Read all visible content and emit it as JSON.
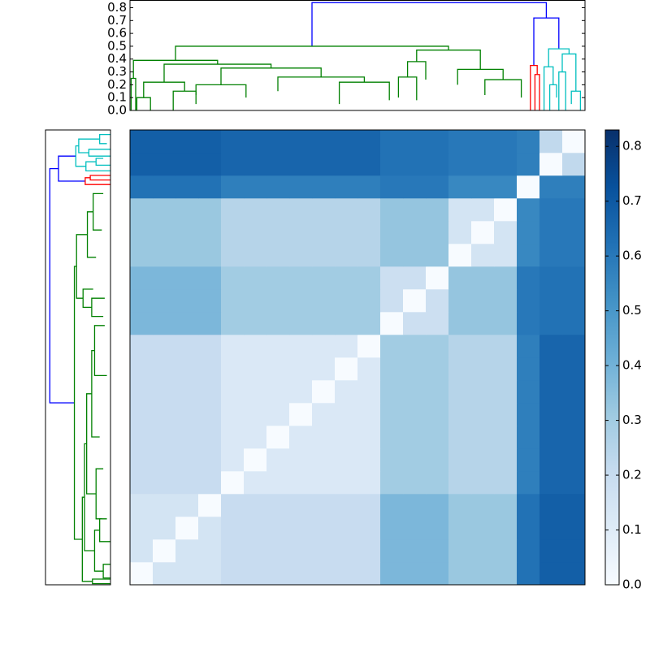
{
  "chart_data": [
    {
      "type": "dendrogram",
      "orientation": "top",
      "xlim": [
        0,
        20
      ],
      "ylim": [
        0,
        0.86
      ],
      "yticks": [
        {
          "value": 0,
          "label": "0.0"
        },
        {
          "value": 0.1,
          "label": "0.1"
        },
        {
          "value": 0.2,
          "label": "0.2"
        },
        {
          "value": 0.3,
          "label": "0.3"
        },
        {
          "value": 0.4,
          "label": "0.4"
        },
        {
          "value": 0.5,
          "label": "0.5"
        },
        {
          "value": 0.6,
          "label": "0.6"
        },
        {
          "value": 0.7,
          "label": "0.7"
        },
        {
          "value": 0.8,
          "label": "0.8"
        }
      ],
      "links": [
        {
          "x": [
            8.0,
            18.3
          ],
          "h": [
            0.5,
            0.72,
            0.84
          ],
          "color": "#0000ff"
        },
        {
          "x": [
            17.75,
            18.85
          ],
          "h": [
            0.35,
            0.48,
            0.72
          ],
          "color": "#0000ff"
        },
        {
          "x": [
            17.6,
            17.9
          ],
          "h": [
            0,
            0.28,
            0.35
          ],
          "color": "#ff0000"
        },
        {
          "x": [
            17.8,
            18.0
          ],
          "h": [
            0,
            0,
            0.28
          ],
          "color": "#ff0000"
        },
        {
          "x": [
            18.4,
            19.3
          ],
          "h": [
            0.34,
            0.44,
            0.48
          ],
          "color": "#00bfbf"
        },
        {
          "x": [
            18.2,
            18.6
          ],
          "h": [
            0,
            0.2,
            0.34
          ],
          "color": "#00bfbf"
        },
        {
          "x": [
            18.45,
            18.75
          ],
          "h": [
            0,
            0.1,
            0.2
          ],
          "color": "#00bfbf"
        },
        {
          "x": [
            19.0,
            19.6
          ],
          "h": [
            0.3,
            0.15,
            0.44
          ],
          "color": "#00bfbf"
        },
        {
          "x": [
            18.85,
            19.15
          ],
          "h": [
            0,
            0,
            0.3
          ],
          "color": "#00bfbf"
        },
        {
          "x": [
            19.4,
            19.8
          ],
          "h": [
            0.05,
            0,
            0.15
          ],
          "color": "#00bfbf"
        },
        {
          "x": [
            2.0,
            14.0
          ],
          "h": [
            0.39,
            0.47,
            0.5
          ],
          "color": "#008000"
        },
        {
          "x": [
            0.15,
            3.85
          ],
          "h": [
            0.25,
            0.36,
            0.39
          ],
          "color": "#008000"
        },
        {
          "x": [
            0.05,
            0.25
          ],
          "h": [
            0,
            0,
            0.25
          ],
          "color": "#008000"
        },
        {
          "x": [
            1.5,
            6.2
          ],
          "h": [
            0.22,
            0.33,
            0.36
          ],
          "color": "#008000"
        },
        {
          "x": [
            0.6,
            2.4
          ],
          "h": [
            0.1,
            0.15,
            0.22
          ],
          "color": "#008000"
        },
        {
          "x": [
            4.0,
            8.4
          ],
          "h": [
            0.2,
            0.26,
            0.33
          ],
          "color": "#008000"
        },
        {
          "x": [
            2.9,
            5.1
          ],
          "h": [
            0.12,
            0.1,
            0.2
          ],
          "color": "#008000"
        },
        {
          "x": [
            6.5,
            10.3
          ],
          "h": [
            0.15,
            0.22,
            0.26
          ],
          "color": "#008000"
        },
        {
          "x": [
            12.6,
            15.4
          ],
          "h": [
            0.38,
            0.32,
            0.47
          ],
          "color": "#008000"
        },
        {
          "x": [
            12.2,
            13.0
          ],
          "h": [
            0.26,
            0.24,
            0.38
          ],
          "color": "#008000"
        },
        {
          "x": [
            14.4,
            16.4
          ],
          "h": [
            0.2,
            0.24,
            0.32
          ],
          "color": "#008000"
        },
        {
          "x": [
            11.8,
            12.6
          ],
          "h": [
            0.1,
            0.08,
            0.26
          ],
          "color": "#008000"
        },
        {
          "x": [
            15.6,
            17.2
          ],
          "h": [
            0.12,
            0.1,
            0.24
          ],
          "color": "#008000"
        },
        {
          "x": [
            9.2,
            11.4
          ],
          "h": [
            0.05,
            0.08,
            0.22
          ],
          "color": "#008000"
        },
        {
          "x": [
            0.3,
            0.9
          ],
          "h": [
            0,
            0,
            0.1
          ],
          "color": "#008000"
        },
        {
          "x": [
            1.9,
            2.9
          ],
          "h": [
            0,
            0.05,
            0.15
          ],
          "color": "#008000"
        }
      ]
    },
    {
      "type": "dendrogram",
      "orientation": "left",
      "xlim": [
        0.9,
        0
      ],
      "ylim": [
        0,
        20
      ]
    },
    {
      "type": "heatmap",
      "cmap": "Blues",
      "clim": [
        0,
        0.83
      ],
      "colorbar_ticks": [
        {
          "value": 0,
          "label": "0.0"
        },
        {
          "value": 0.1,
          "label": "0.1"
        },
        {
          "value": 0.2,
          "label": "0.2"
        },
        {
          "value": 0.3,
          "label": "0.3"
        },
        {
          "value": 0.4,
          "label": "0.4"
        },
        {
          "value": 0.5,
          "label": "0.5"
        },
        {
          "value": 0.6,
          "label": "0.6"
        },
        {
          "value": 0.7,
          "label": "0.7"
        },
        {
          "value": 0.8,
          "label": "0.8"
        }
      ],
      "matrix": [
        [
          0,
          0.15,
          0.15,
          0.15,
          0.2,
          0.2,
          0.2,
          0.2,
          0.2,
          0.2,
          0.2,
          0.38,
          0.38,
          0.38,
          0.32,
          0.32,
          0.32,
          0.62,
          0.68,
          0.68
        ],
        [
          0.15,
          0,
          0.15,
          0.15,
          0.2,
          0.2,
          0.2,
          0.2,
          0.2,
          0.2,
          0.2,
          0.38,
          0.38,
          0.38,
          0.32,
          0.32,
          0.32,
          0.62,
          0.68,
          0.68
        ],
        [
          0.15,
          0.15,
          0,
          0.15,
          0.2,
          0.2,
          0.2,
          0.2,
          0.2,
          0.2,
          0.2,
          0.38,
          0.38,
          0.38,
          0.32,
          0.32,
          0.32,
          0.62,
          0.68,
          0.68
        ],
        [
          0.15,
          0.15,
          0.15,
          0,
          0.2,
          0.2,
          0.2,
          0.2,
          0.2,
          0.2,
          0.2,
          0.38,
          0.38,
          0.38,
          0.32,
          0.32,
          0.32,
          0.62,
          0.68,
          0.68
        ],
        [
          0.2,
          0.2,
          0.2,
          0.2,
          0,
          0.12,
          0.12,
          0.12,
          0.12,
          0.12,
          0.12,
          0.3,
          0.3,
          0.3,
          0.25,
          0.25,
          0.25,
          0.58,
          0.66,
          0.66
        ],
        [
          0.2,
          0.2,
          0.2,
          0.2,
          0.12,
          0,
          0.12,
          0.12,
          0.12,
          0.12,
          0.12,
          0.3,
          0.3,
          0.3,
          0.25,
          0.25,
          0.25,
          0.58,
          0.66,
          0.66
        ],
        [
          0.2,
          0.2,
          0.2,
          0.2,
          0.12,
          0.12,
          0,
          0.12,
          0.12,
          0.12,
          0.12,
          0.3,
          0.3,
          0.3,
          0.25,
          0.25,
          0.25,
          0.58,
          0.66,
          0.66
        ],
        [
          0.2,
          0.2,
          0.2,
          0.2,
          0.12,
          0.12,
          0.12,
          0,
          0.12,
          0.12,
          0.12,
          0.3,
          0.3,
          0.3,
          0.25,
          0.25,
          0.25,
          0.58,
          0.66,
          0.66
        ],
        [
          0.2,
          0.2,
          0.2,
          0.2,
          0.12,
          0.12,
          0.12,
          0.12,
          0,
          0.12,
          0.12,
          0.3,
          0.3,
          0.3,
          0.25,
          0.25,
          0.25,
          0.58,
          0.66,
          0.66
        ],
        [
          0.2,
          0.2,
          0.2,
          0.2,
          0.12,
          0.12,
          0.12,
          0.12,
          0.12,
          0,
          0.12,
          0.3,
          0.3,
          0.3,
          0.25,
          0.25,
          0.25,
          0.58,
          0.66,
          0.66
        ],
        [
          0.2,
          0.2,
          0.2,
          0.2,
          0.12,
          0.12,
          0.12,
          0.12,
          0.12,
          0.12,
          0,
          0.3,
          0.3,
          0.3,
          0.25,
          0.25,
          0.25,
          0.58,
          0.66,
          0.66
        ],
        [
          0.38,
          0.38,
          0.38,
          0.38,
          0.3,
          0.3,
          0.3,
          0.3,
          0.3,
          0.3,
          0.3,
          0,
          0.18,
          0.18,
          0.33,
          0.33,
          0.33,
          0.6,
          0.62,
          0.62
        ],
        [
          0.38,
          0.38,
          0.38,
          0.38,
          0.3,
          0.3,
          0.3,
          0.3,
          0.3,
          0.3,
          0.3,
          0.18,
          0,
          0.18,
          0.33,
          0.33,
          0.33,
          0.6,
          0.62,
          0.62
        ],
        [
          0.38,
          0.38,
          0.38,
          0.38,
          0.3,
          0.3,
          0.3,
          0.3,
          0.3,
          0.3,
          0.3,
          0.18,
          0.18,
          0,
          0.33,
          0.33,
          0.33,
          0.6,
          0.62,
          0.62
        ],
        [
          0.32,
          0.32,
          0.32,
          0.32,
          0.25,
          0.25,
          0.25,
          0.25,
          0.25,
          0.25,
          0.25,
          0.33,
          0.33,
          0.33,
          0,
          0.15,
          0.15,
          0.55,
          0.6,
          0.6
        ],
        [
          0.32,
          0.32,
          0.32,
          0.32,
          0.25,
          0.25,
          0.25,
          0.25,
          0.25,
          0.25,
          0.25,
          0.33,
          0.33,
          0.33,
          0.15,
          0,
          0.15,
          0.55,
          0.6,
          0.6
        ],
        [
          0.32,
          0.32,
          0.32,
          0.32,
          0.25,
          0.25,
          0.25,
          0.25,
          0.25,
          0.25,
          0.25,
          0.33,
          0.33,
          0.33,
          0.15,
          0.15,
          0,
          0.55,
          0.6,
          0.6
        ],
        [
          0.62,
          0.62,
          0.62,
          0.62,
          0.58,
          0.58,
          0.58,
          0.58,
          0.58,
          0.58,
          0.58,
          0.6,
          0.6,
          0.6,
          0.55,
          0.55,
          0.55,
          0,
          0.58,
          0.58
        ],
        [
          0.68,
          0.68,
          0.68,
          0.68,
          0.66,
          0.66,
          0.66,
          0.66,
          0.66,
          0.66,
          0.66,
          0.62,
          0.62,
          0.62,
          0.6,
          0.6,
          0.6,
          0.58,
          0,
          0.22
        ],
        [
          0.68,
          0.68,
          0.68,
          0.68,
          0.66,
          0.66,
          0.66,
          0.66,
          0.66,
          0.66,
          0.66,
          0.62,
          0.62,
          0.62,
          0.6,
          0.6,
          0.6,
          0.58,
          0.22,
          0
        ]
      ]
    }
  ]
}
